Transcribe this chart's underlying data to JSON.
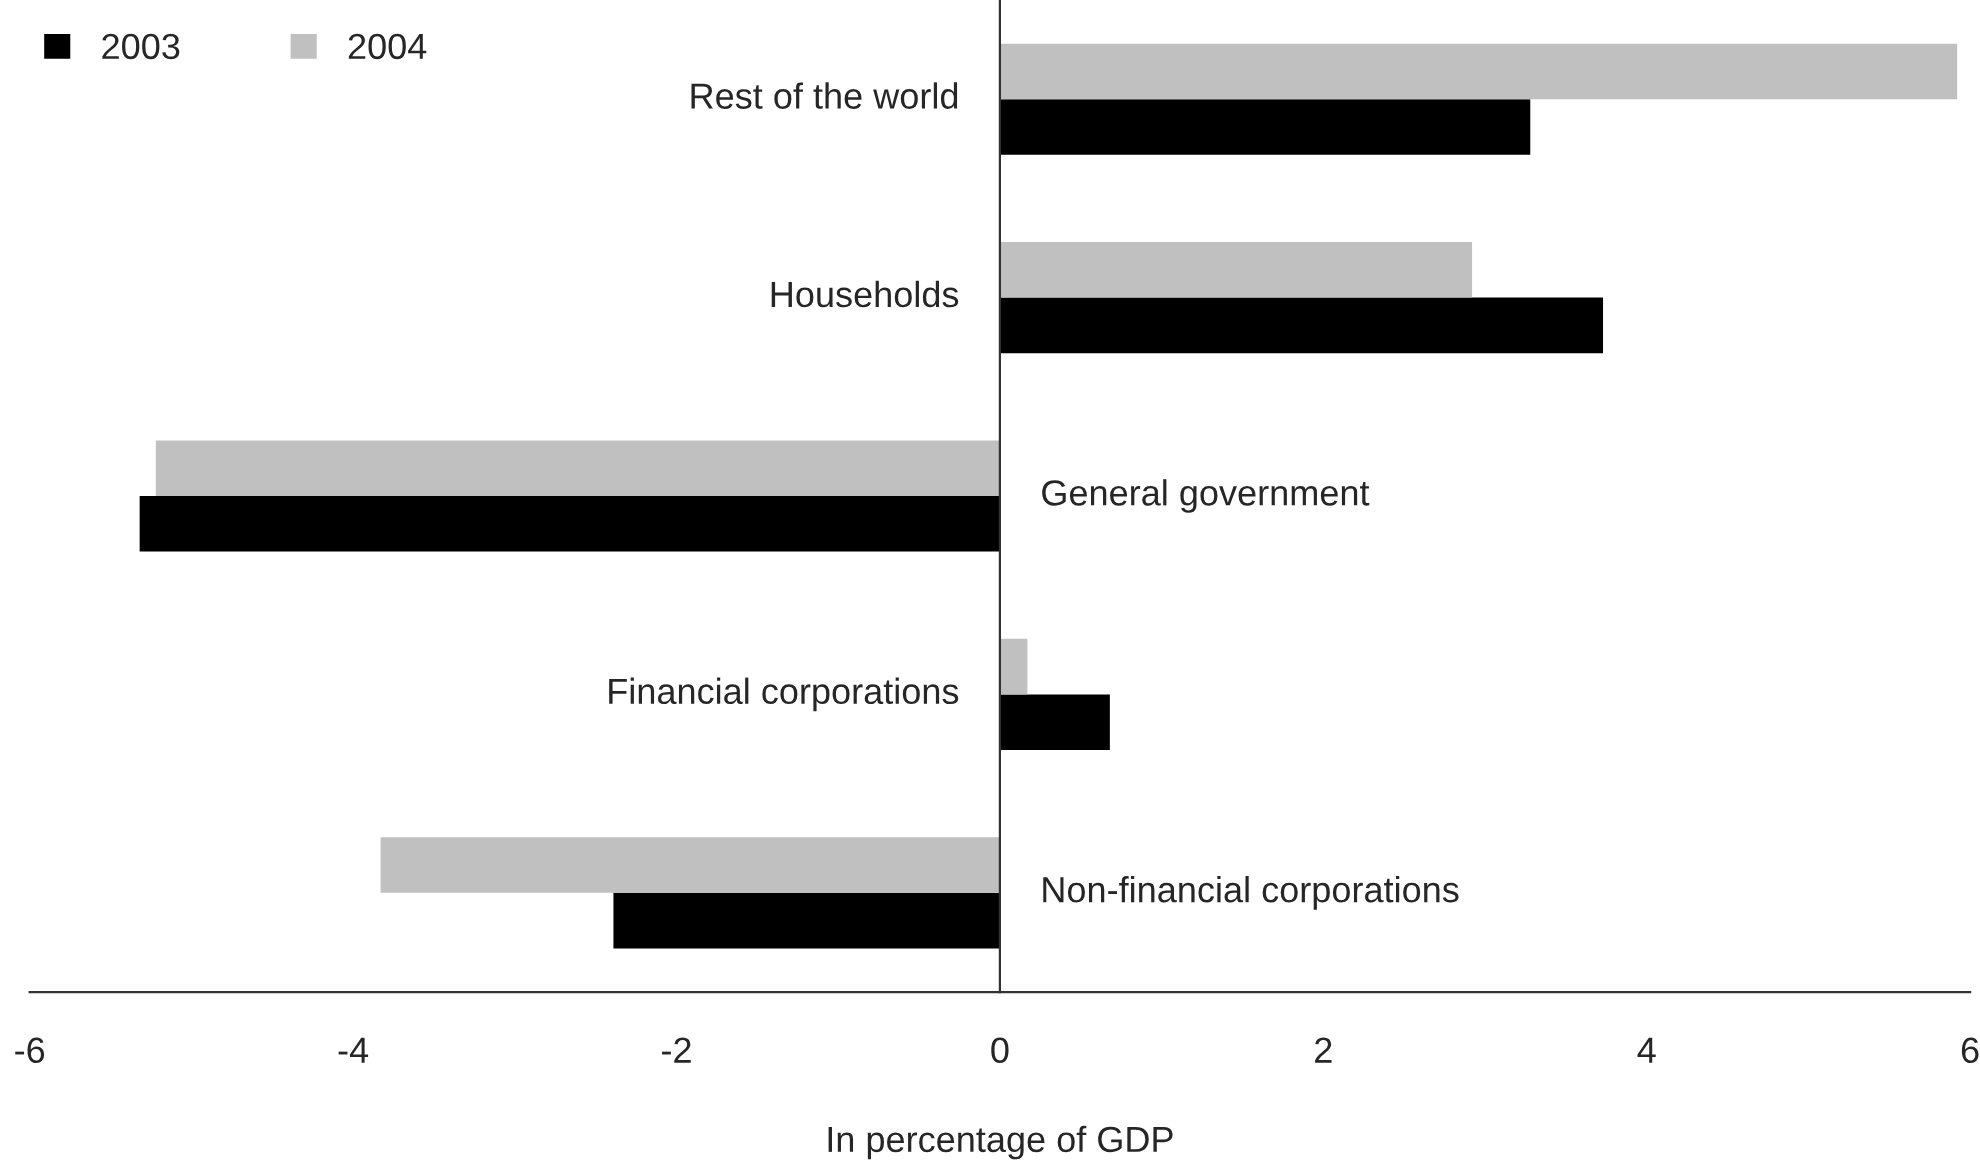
{
  "chart_data": {
    "type": "bar",
    "orientation": "horizontal",
    "xlabel": "In percentage of GDP",
    "categories": [
      "Rest of the world",
      "Households",
      "General government",
      "Financial corporations",
      "Non-financial corporations"
    ],
    "series": [
      {
        "name": "2003",
        "color": "#000000",
        "values": [
          3.28,
          3.73,
          -5.32,
          0.68,
          -2.39
        ]
      },
      {
        "name": "2004",
        "color": "#c0c0c0",
        "values": [
          5.92,
          2.92,
          -5.22,
          0.17,
          -3.83
        ]
      }
    ],
    "xlim": [
      -6,
      6
    ],
    "xticks": [
      -6,
      -4,
      -2,
      0,
      2,
      4,
      6
    ],
    "grid": false,
    "legend": "top left"
  }
}
